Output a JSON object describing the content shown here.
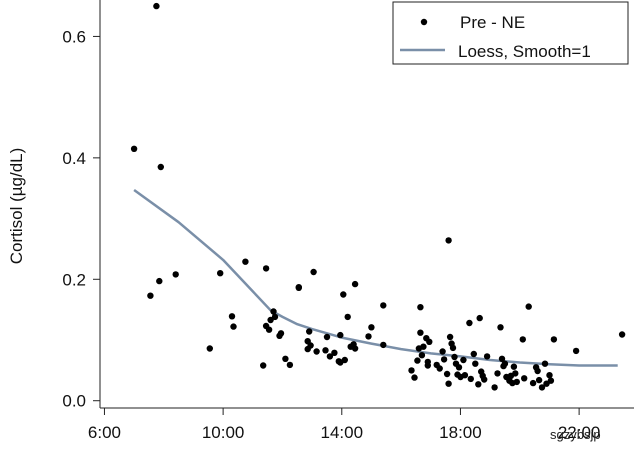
{
  "chart_data": {
    "type": "scatter",
    "title": "",
    "xlabel": "",
    "ylabel": "Cortisol (µg/dL)",
    "xlim": [
      5.85,
      23.85
    ],
    "ylim": [
      -0.012,
      0.66
    ],
    "x_ticks": [
      6,
      10,
      14,
      18,
      22
    ],
    "x_tick_labels": [
      "6:00",
      "10:00",
      "14:00",
      "18:00",
      "22:00"
    ],
    "y_ticks": [
      0.0,
      0.2,
      0.4,
      0.6
    ],
    "y_tick_labels": [
      "0.0",
      "0.2",
      "0.4",
      "0.6"
    ],
    "legend_position": "top-right",
    "colors": {
      "points": "#000000",
      "loess": "#7a8fa8",
      "axis": "#222222"
    },
    "series": [
      {
        "name": "Pre - NE",
        "kind": "points",
        "x": [
          7.75,
          7.0,
          7.9,
          7.85,
          7.55,
          8.4,
          9.55,
          9.9,
          10.3,
          10.35,
          10.75,
          11.45,
          11.6,
          11.55,
          11.7,
          11.75,
          11.45,
          11.35,
          11.95,
          11.9,
          12.1,
          12.25,
          12.55,
          12.55,
          12.85,
          12.85,
          13.05,
          12.9,
          12.95,
          13.15,
          13.5,
          13.45,
          13.6,
          13.75,
          13.95,
          13.95,
          13.9,
          14.05,
          14.1,
          14.2,
          14.3,
          14.4,
          14.45,
          14.45,
          14.9,
          15.0,
          15.4,
          15.4,
          16.35,
          16.45,
          16.55,
          16.6,
          16.65,
          16.65,
          16.7,
          16.75,
          16.85,
          16.9,
          16.9,
          16.95,
          17.2,
          17.3,
          17.4,
          17.45,
          17.55,
          17.6,
          17.65,
          17.7,
          17.75,
          17.8,
          17.85,
          17.9,
          17.95,
          18.0,
          18.1,
          18.15,
          18.3,
          18.35,
          18.45,
          18.5,
          18.6,
          18.65,
          18.7,
          18.75,
          18.8,
          18.9,
          19.15,
          19.25,
          19.35,
          19.4,
          19.45,
          19.5,
          19.55,
          19.65,
          19.7,
          19.75,
          19.8,
          19.85,
          19.9,
          20.1,
          20.15,
          20.3,
          20.45,
          20.55,
          20.6,
          20.65,
          20.75,
          20.85,
          20.9,
          21.0,
          21.05,
          21.15,
          21.9,
          23.45,
          17.6
        ],
        "y": [
          0.65,
          0.415,
          0.385,
          0.197,
          0.173,
          0.208,
          0.086,
          0.21,
          0.139,
          0.122,
          0.229,
          0.218,
          0.133,
          0.117,
          0.147,
          0.138,
          0.123,
          0.058,
          0.111,
          0.107,
          0.069,
          0.059,
          0.187,
          0.186,
          0.098,
          0.085,
          0.212,
          0.114,
          0.091,
          0.081,
          0.105,
          0.083,
          0.073,
          0.079,
          0.108,
          0.063,
          0.065,
          0.175,
          0.067,
          0.138,
          0.089,
          0.093,
          0.086,
          0.192,
          0.106,
          0.121,
          0.157,
          0.092,
          0.05,
          0.038,
          0.066,
          0.086,
          0.154,
          0.112,
          0.075,
          0.089,
          0.103,
          0.064,
          0.058,
          0.097,
          0.059,
          0.053,
          0.081,
          0.068,
          0.044,
          0.028,
          0.105,
          0.094,
          0.087,
          0.072,
          0.061,
          0.043,
          0.055,
          0.039,
          0.067,
          0.042,
          0.128,
          0.036,
          0.077,
          0.061,
          0.027,
          0.136,
          0.048,
          0.041,
          0.035,
          0.073,
          0.022,
          0.045,
          0.121,
          0.069,
          0.057,
          0.061,
          0.039,
          0.033,
          0.041,
          0.029,
          0.056,
          0.045,
          0.031,
          0.101,
          0.037,
          0.155,
          0.029,
          0.055,
          0.049,
          0.034,
          0.022,
          0.061,
          0.028,
          0.042,
          0.033,
          0.101,
          0.082,
          0.109,
          0.264
        ]
      },
      {
        "name": "Loess, Smooth=1",
        "kind": "line",
        "x": [
          7.0,
          8.5,
          10.0,
          11.0,
          11.6,
          12.0,
          12.5,
          13.0,
          13.5,
          14.0,
          15.0,
          16.0,
          17.0,
          18.0,
          19.0,
          20.0,
          21.0,
          22.0,
          23.3
        ],
        "y": [
          0.347,
          0.294,
          0.232,
          0.18,
          0.149,
          0.138,
          0.126,
          0.118,
          0.111,
          0.104,
          0.094,
          0.085,
          0.078,
          0.073,
          0.067,
          0.063,
          0.06,
          0.058,
          0.058
        ]
      }
    ]
  },
  "watermark": "sgzybsjp"
}
